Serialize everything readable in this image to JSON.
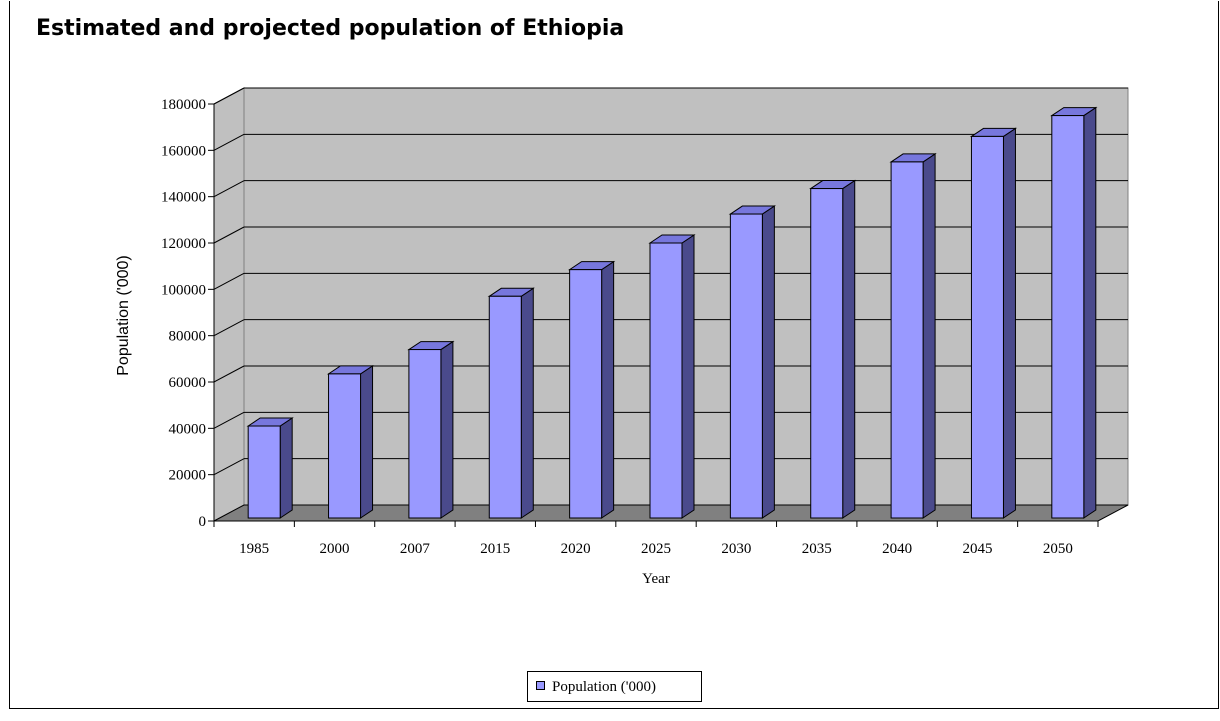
{
  "chart_data": {
    "type": "bar",
    "title": "Estimated and projected population of Ethiopia",
    "xlabel": "Year",
    "ylabel": "Population ('000)",
    "categories": [
      "1985",
      "2000",
      "2007",
      "2015",
      "2020",
      "2025",
      "2030",
      "2035",
      "2040",
      "2045",
      "2050"
    ],
    "series": [
      {
        "name": "Population ('000)",
        "values": [
          41000,
          63500,
          74000,
          97000,
          108500,
          120000,
          132500,
          143500,
          155000,
          166000,
          175000
        ],
        "color": "#9999ff"
      }
    ],
    "ylim": [
      0,
      180000
    ],
    "yticks": [
      "0",
      "20000",
      "40000",
      "60000",
      "80000",
      "100000",
      "120000",
      "140000",
      "160000",
      "180000"
    ],
    "grid": true,
    "legend_position": "bottom",
    "style": "3d-bar"
  }
}
